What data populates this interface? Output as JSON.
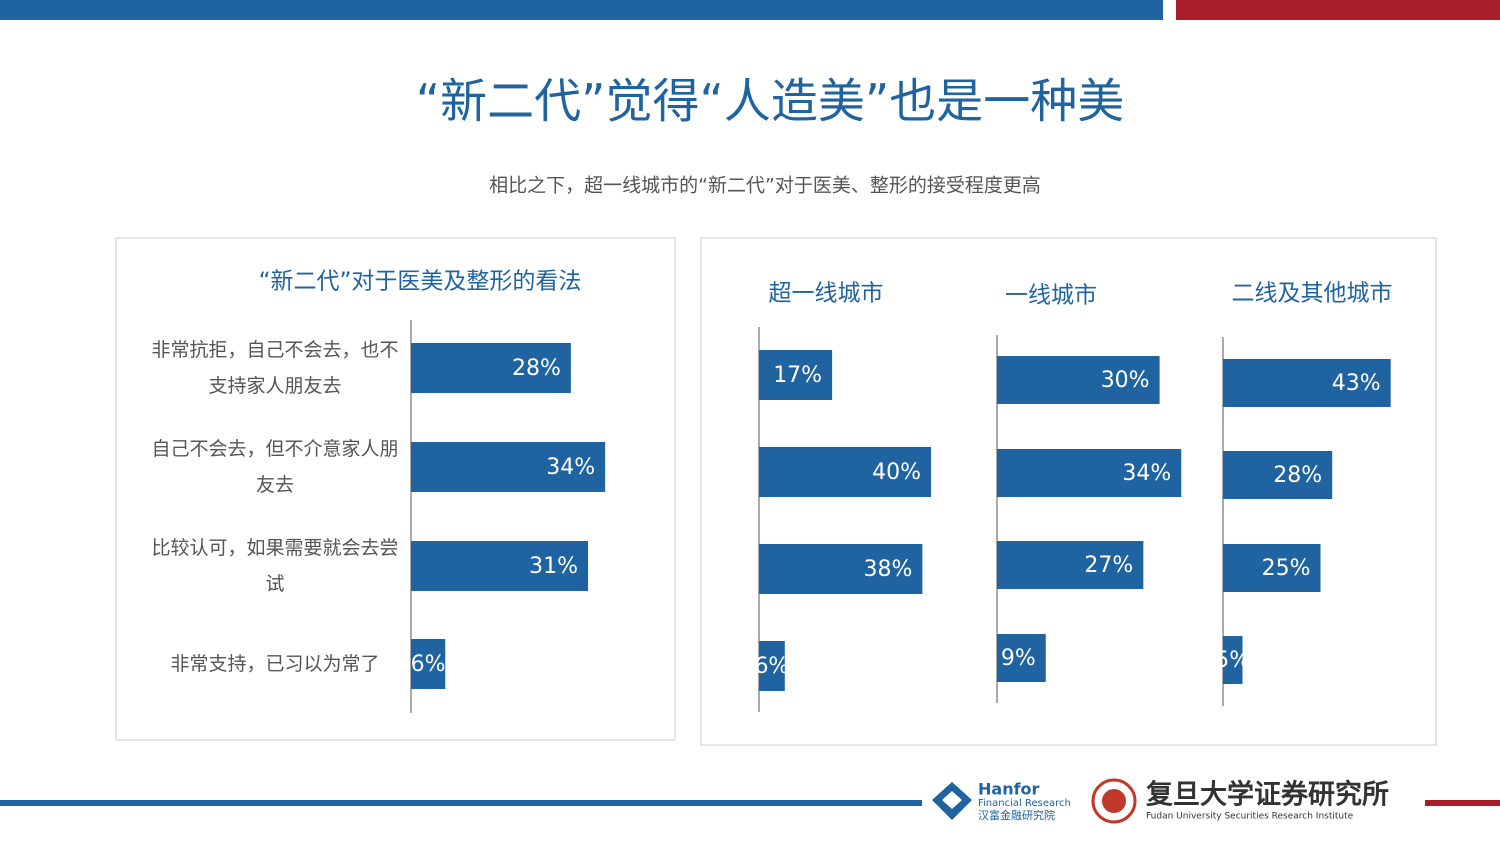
{
  "title": "“新二代”觉得“人造美”也是一种美",
  "subtitle": "相比之下，超一线城市的“新二代”对于医美、整形的接受程度更高",
  "footer": {
    "hanfor": "Hanfor",
    "hanfor_sub": "Financial Research",
    "hanfor_cn": "汉富金融研究院",
    "fudan_cn": "复旦大学证券研究所",
    "fudan_en": "Fudan University Securities Research Institute"
  },
  "chart_data": [
    {
      "type": "hbar",
      "title": "“新二代”对于医美及整形的看法",
      "color": "#1f63a0",
      "categories": [
        "非常抗拒，自己不会去，也不支持家人朋友去",
        "自己不会去，但不介意家人朋友去",
        "比较认可，如果需要就会去尝试",
        "非常支持，已习以为常了"
      ],
      "values": [
        28,
        34,
        31,
        6
      ],
      "value_labels": [
        "28%",
        "34%",
        "31%",
        "6%"
      ]
    },
    {
      "type": "hbar",
      "title": "超一线城市",
      "color": "#1f63a0",
      "categories": [
        null,
        null,
        null,
        null
      ],
      "values": [
        17,
        40,
        38,
        6
      ],
      "value_labels": [
        "17%",
        "40%",
        "38%",
        "6%"
      ]
    },
    {
      "type": "hbar",
      "title": "一线城市",
      "color": "#1f63a0",
      "categories": [
        null,
        null,
        null,
        null
      ],
      "values": [
        30,
        34,
        27,
        9
      ],
      "value_labels": [
        "30%",
        "34%",
        "27%",
        "9%"
      ]
    },
    {
      "type": "hbar",
      "title": "二线及其他城市",
      "color": "#1f63a0",
      "categories": [
        null,
        null,
        null,
        null
      ],
      "values": [
        43,
        28,
        25,
        5
      ],
      "value_labels": [
        "43%",
        "28%",
        "25%",
        "5%"
      ]
    }
  ]
}
